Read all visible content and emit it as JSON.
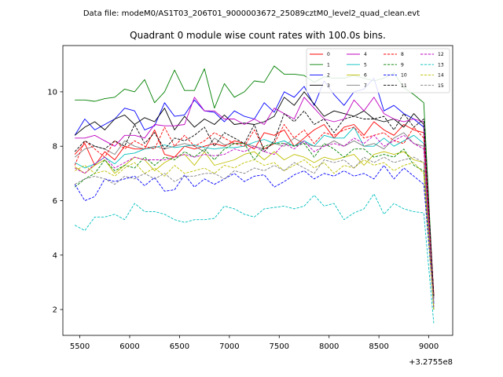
{
  "figure": {
    "suptitle": "Data file: modeM0/AS1T03_206T01_9000003672_25089cztM0_level2_quad_clean.evt",
    "title": "Quadrant 0 module wise count rates with 100.0s bins."
  },
  "chart_data": {
    "type": "line",
    "title": "Quadrant 0 module wise count rates with 100.0s bins.",
    "xlabel": "",
    "ylabel": "",
    "x_offset_label": "+3.2755e8",
    "xlim": [
      5330,
      9240
    ],
    "ylim": [
      1.05,
      11.7
    ],
    "xticks": [
      5500,
      6000,
      6500,
      7000,
      7500,
      8000,
      8500,
      9000
    ],
    "xtick_labels": [
      "5500",
      "6000",
      "6500",
      "7000",
      "7500",
      "8000",
      "8500",
      "9000"
    ],
    "yticks": [
      2,
      4,
      6,
      8,
      10
    ],
    "ytick_labels": [
      "2",
      "4",
      "6",
      "8",
      "10"
    ],
    "grid": false,
    "legend_position": "top-right",
    "legend_columns": 4,
    "x": [
      5450,
      5550,
      5650,
      5750,
      5850,
      5950,
      6050,
      6150,
      6250,
      6350,
      6450,
      6550,
      6650,
      6750,
      6850,
      6950,
      7050,
      7150,
      7250,
      7350,
      7450,
      7550,
      7650,
      7750,
      7850,
      7950,
      8050,
      8150,
      8250,
      8350,
      8450,
      8550,
      8650,
      8750,
      8850,
      8950,
      9050
    ],
    "series": [
      {
        "name": "0",
        "color": "#ff0000",
        "dash": "solid",
        "values": [
          7.7,
          8.1,
          7.3,
          7.8,
          7.5,
          8.0,
          7.9,
          7.9,
          8.6,
          7.7,
          7.6,
          8.0,
          7.9,
          8.0,
          8.1,
          8.0,
          8.2,
          8.1,
          7.9,
          8.5,
          8.4,
          8.6,
          8.0,
          8.3,
          8.6,
          8.8,
          8.3,
          8.7,
          8.8,
          8.4,
          8.9,
          8.6,
          8.4,
          8.8,
          8.6,
          8.5,
          2.6
        ]
      },
      {
        "name": "1",
        "color": "#008000",
        "dash": "solid",
        "values": [
          9.7,
          9.7,
          9.65,
          9.75,
          9.8,
          10.1,
          10.0,
          10.45,
          9.6,
          10.0,
          10.8,
          10.05,
          10.05,
          10.85,
          9.4,
          10.3,
          9.8,
          10.0,
          10.4,
          10.35,
          10.95,
          10.65,
          10.65,
          10.6,
          10.35,
          10.55,
          10.5,
          10.5,
          10.6,
          10.5,
          10.4,
          10.5,
          10.7,
          10.15,
          9.9,
          9.6,
          2.4
        ]
      },
      {
        "name": "2",
        "color": "#0000ff",
        "dash": "solid",
        "values": [
          8.4,
          9.0,
          8.6,
          8.8,
          9.0,
          9.4,
          9.3,
          8.6,
          8.75,
          9.6,
          9.1,
          9.15,
          9.7,
          9.3,
          9.25,
          8.9,
          9.3,
          9.1,
          9.0,
          9.6,
          9.25,
          10.0,
          9.8,
          10.2,
          9.5,
          10.4,
          9.9,
          9.5,
          10.0,
          10.1,
          10.5,
          9.3,
          9.5,
          9.2,
          9.0,
          8.7,
          2.2
        ]
      },
      {
        "name": "3",
        "color": "#000000",
        "dash": "solid",
        "values": [
          8.4,
          8.7,
          8.9,
          8.6,
          9.0,
          9.15,
          8.8,
          9.05,
          8.9,
          9.4,
          8.6,
          9.1,
          8.7,
          9.0,
          8.8,
          9.15,
          8.8,
          8.85,
          8.8,
          8.9,
          9.1,
          9.8,
          9.5,
          10.0,
          9.55,
          9.1,
          9.3,
          9.2,
          9.1,
          9.3,
          9.0,
          8.9,
          9.0,
          8.7,
          9.2,
          8.8,
          2.5
        ]
      },
      {
        "name": "4",
        "color": "#c000c0",
        "dash": "solid",
        "values": [
          8.3,
          8.3,
          8.4,
          8.2,
          8.0,
          8.4,
          8.4,
          8.3,
          8.8,
          8.75,
          8.75,
          8.8,
          9.8,
          9.3,
          9.3,
          9.0,
          9.0,
          8.8,
          9.0,
          8.8,
          9.4,
          9.2,
          9.0,
          9.8,
          9.4,
          9.0,
          8.9,
          9.0,
          9.7,
          9.3,
          9.8,
          9.2,
          9.0,
          8.9,
          9.0,
          8.9,
          2.4
        ]
      },
      {
        "name": "5",
        "color": "#00bfbf",
        "dash": "solid",
        "values": [
          7.4,
          7.2,
          7.35,
          7.6,
          7.35,
          7.7,
          7.75,
          7.9,
          7.95,
          8.05,
          7.95,
          8.0,
          8.05,
          7.95,
          7.9,
          7.95,
          7.95,
          8.0,
          8.15,
          8.25,
          8.1,
          8.2,
          8.0,
          8.2,
          8.0,
          8.4,
          8.3,
          8.3,
          8.7,
          8.0,
          8.0,
          8.3,
          8.0,
          8.2,
          8.4,
          8.1,
          2.0
        ]
      },
      {
        "name": "6",
        "color": "#bfbf00",
        "dash": "solid",
        "values": [
          7.25,
          7.0,
          7.3,
          7.5,
          7.0,
          7.3,
          7.6,
          7.5,
          7.1,
          7.4,
          7.6,
          7.7,
          7.3,
          7.8,
          7.3,
          7.4,
          7.5,
          7.7,
          7.8,
          7.5,
          7.8,
          7.5,
          7.7,
          7.6,
          7.4,
          7.6,
          7.5,
          7.6,
          7.7,
          7.3,
          7.7,
          7.8,
          7.7,
          7.8,
          7.5,
          7.4,
          2.1
        ]
      },
      {
        "name": "7",
        "color": "#808080",
        "dash": "solid",
        "values": [
          7.6,
          7.9,
          8.0,
          7.9,
          7.7,
          8.2,
          8.0,
          7.9,
          8.0,
          7.9,
          8.0,
          8.1,
          8.0,
          7.8,
          8.3,
          8.05,
          8.1,
          8.1,
          8.0,
          7.9,
          8.1,
          8.0,
          8.3,
          8.1,
          8.0,
          8.0,
          8.2,
          8.0,
          8.2,
          8.0,
          8.1,
          7.9,
          8.3,
          8.5,
          8.1,
          8.0,
          2.3
        ]
      },
      {
        "name": "8",
        "color": "#ff0000",
        "dash": "dashed",
        "values": [
          7.3,
          8.2,
          7.9,
          7.6,
          8.2,
          7.9,
          8.2,
          8.0,
          7.9,
          8.7,
          8.0,
          8.4,
          8.0,
          8.2,
          8.5,
          8.3,
          8.1,
          8.0,
          8.6,
          7.9,
          8.1,
          8.8,
          8.3,
          8.6,
          8.1,
          8.5,
          8.4,
          8.6,
          8.7,
          8.3,
          8.4,
          8.5,
          8.2,
          8.1,
          8.7,
          8.3,
          2.5
        ]
      },
      {
        "name": "9",
        "color": "#008000",
        "dash": "dashed",
        "values": [
          6.5,
          6.8,
          7.0,
          7.5,
          7.1,
          7.3,
          7.2,
          7.6,
          7.3,
          7.6,
          7.5,
          7.8,
          7.6,
          7.9,
          7.5,
          7.9,
          8.1,
          8.1,
          7.5,
          8.0,
          8.1,
          8.1,
          8.0,
          8.1,
          7.6,
          8.1,
          7.9,
          7.6,
          7.9,
          7.9,
          7.6,
          7.7,
          7.6,
          7.9,
          7.3,
          7.1,
          2.0
        ]
      },
      {
        "name": "10",
        "color": "#0000ff",
        "dash": "dashed",
        "values": [
          6.6,
          6.0,
          6.15,
          6.8,
          6.7,
          6.8,
          6.9,
          6.55,
          6.85,
          6.35,
          6.4,
          6.95,
          6.5,
          6.8,
          6.6,
          6.8,
          7.0,
          6.7,
          6.9,
          6.95,
          6.5,
          6.7,
          6.95,
          7.1,
          6.8,
          7.0,
          6.9,
          7.1,
          6.9,
          7.0,
          6.8,
          7.3,
          6.8,
          7.2,
          6.9,
          6.6,
          2.2
        ]
      },
      {
        "name": "11",
        "color": "#000000",
        "dash": "dashed",
        "values": [
          7.8,
          8.2,
          8.0,
          7.9,
          8.2,
          8.0,
          8.8,
          8.1,
          8.5,
          7.9,
          8.3,
          8.2,
          8.4,
          8.7,
          8.0,
          8.5,
          8.3,
          8.1,
          8.8,
          7.8,
          8.2,
          9.2,
          8.9,
          9.3,
          8.8,
          9.0,
          8.5,
          9.0,
          9.1,
          9.0,
          9.0,
          9.1,
          8.6,
          9.2,
          8.7,
          9.0,
          2.5
        ]
      },
      {
        "name": "12",
        "color": "#c000c0",
        "dash": "dashed",
        "values": [
          7.2,
          7.0,
          7.35,
          7.6,
          7.2,
          7.4,
          7.6,
          7.5,
          7.5,
          7.5,
          7.6,
          7.7,
          7.6,
          7.7,
          7.65,
          7.7,
          7.9,
          7.8,
          8.0,
          7.8,
          7.7,
          8.1,
          7.9,
          8.2,
          7.8,
          8.0,
          8.1,
          8.0,
          8.3,
          8.1,
          8.4,
          8.0,
          8.2,
          8.4,
          8.1,
          7.9,
          2.1
        ]
      },
      {
        "name": "13",
        "color": "#00bfbf",
        "dash": "dashed",
        "values": [
          5.1,
          4.9,
          5.4,
          5.4,
          5.5,
          5.3,
          5.9,
          5.6,
          5.6,
          5.5,
          5.3,
          5.2,
          5.3,
          5.3,
          5.35,
          5.8,
          5.7,
          5.5,
          5.4,
          5.7,
          5.75,
          5.8,
          5.7,
          5.8,
          6.2,
          5.8,
          5.9,
          5.3,
          5.55,
          5.7,
          6.25,
          5.5,
          5.9,
          5.7,
          5.6,
          5.55,
          1.5
        ]
      },
      {
        "name": "14",
        "color": "#bfbf00",
        "dash": "dashed",
        "values": [
          7.1,
          7.3,
          7.0,
          7.1,
          6.9,
          7.2,
          7.4,
          7.0,
          7.2,
          6.9,
          7.3,
          7.0,
          7.1,
          7.2,
          7.0,
          7.3,
          7.2,
          7.4,
          7.5,
          7.3,
          7.4,
          7.1,
          7.3,
          7.5,
          7.2,
          7.4,
          7.0,
          7.3,
          7.2,
          7.5,
          7.3,
          7.4,
          7.1,
          7.3,
          7.4,
          7.0,
          2.0
        ]
      },
      {
        "name": "15",
        "color": "#808080",
        "dash": "dashed",
        "values": [
          6.6,
          6.8,
          6.9,
          6.8,
          6.6,
          6.9,
          6.8,
          7.0,
          6.8,
          7.0,
          6.7,
          6.9,
          6.9,
          7.0,
          7.0,
          6.8,
          7.1,
          7.0,
          7.2,
          7.1,
          7.3,
          7.1,
          7.4,
          7.2,
          7.0,
          7.5,
          7.4,
          7.5,
          7.2,
          7.6,
          7.4,
          7.6,
          7.4,
          7.5,
          7.6,
          7.4,
          2.2
        ]
      }
    ]
  }
}
